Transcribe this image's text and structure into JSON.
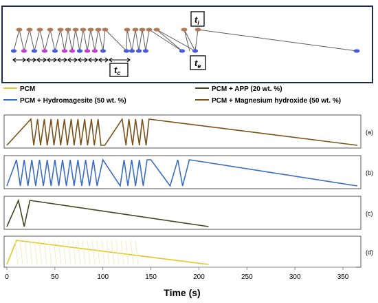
{
  "schematic": {
    "label_ti": "t",
    "label_ti_sub": "i",
    "label_te": "t",
    "label_te_sub": "e",
    "label_tc": "t",
    "label_tc_sub": "c",
    "colors": {
      "frame": "#1f2a44",
      "stem": "#5b5b5b",
      "top_dot": "#b07a5a",
      "bottom_dot": "#4a5bd6",
      "bottom_dot_alt": "#c040c8"
    }
  },
  "legend": [
    {
      "label": "PCM",
      "color": "#e3c81f"
    },
    {
      "label": "PCM + Hydromagesite (50 wt. %)",
      "color": "#3a6cc4"
    },
    {
      "label": "PCM + APP (20 wt. %)",
      "color": "#3e4a1e"
    },
    {
      "label": "PCM + Magnesium hydroxide (50 wt. %)",
      "color": "#7a5218"
    }
  ],
  "panels": [
    {
      "tag": "(a)",
      "color": "#7a5218"
    },
    {
      "tag": "(b)",
      "color": "#3a6cc4"
    },
    {
      "tag": "(c)",
      "color": "#3e4a1e"
    },
    {
      "tag": "(d)",
      "color": "#e3c81f"
    }
  ],
  "chart_data": [
    {
      "type": "line",
      "series": [
        {
          "name": "PCM + Magnesium hydroxide (50 wt. %)",
          "x": [
            0,
            25,
            28,
            32,
            35,
            39,
            42,
            46,
            49,
            53,
            56,
            60,
            63,
            67,
            70,
            74,
            77,
            81,
            84,
            88,
            91,
            95,
            98,
            102,
            120,
            124,
            127,
            131,
            134,
            138,
            141,
            145,
            148,
            365
          ],
          "y": [
            0,
            1,
            0,
            1,
            0,
            1,
            0,
            1,
            0,
            1,
            0,
            1,
            0,
            1,
            0,
            1,
            0,
            1,
            0,
            1,
            0,
            1,
            0,
            0,
            1,
            0,
            1,
            0,
            1,
            0,
            1,
            0,
            1,
            0
          ]
        }
      ]
    },
    {
      "type": "line",
      "series": [
        {
          "name": "PCM + Hydromagesite (50 wt. %)",
          "x": [
            0,
            10,
            14,
            18,
            22,
            26,
            30,
            34,
            38,
            42,
            46,
            50,
            54,
            58,
            62,
            66,
            70,
            74,
            78,
            82,
            86,
            90,
            94,
            100,
            118,
            122,
            126,
            130,
            134,
            138,
            142,
            146,
            150,
            170,
            178,
            183,
            190,
            365
          ],
          "y": [
            0,
            1,
            0,
            1,
            0,
            1,
            0,
            1,
            0,
            1,
            0,
            1,
            0,
            1,
            0,
            1,
            0,
            1,
            0,
            1,
            0,
            1,
            0,
            1,
            0,
            1,
            0,
            1,
            0,
            1,
            0,
            1,
            1,
            0,
            1,
            0,
            1,
            0
          ]
        }
      ]
    },
    {
      "type": "line",
      "series": [
        {
          "name": "PCM + APP (20 wt. %)",
          "x": [
            0,
            12,
            18,
            24,
            210
          ],
          "y": [
            0,
            1,
            0,
            1,
            0
          ]
        }
      ]
    },
    {
      "type": "line",
      "series": [
        {
          "name": "PCM",
          "x": [
            0,
            10,
            210
          ],
          "y": [
            0,
            1,
            0
          ]
        }
      ]
    }
  ],
  "axis": {
    "ticks": [
      "0",
      "50",
      "100",
      "150",
      "200",
      "250",
      "300",
      "350"
    ],
    "tick_values": [
      0,
      50,
      100,
      150,
      200,
      250,
      300,
      350
    ],
    "xlim": [
      0,
      365
    ],
    "xlabel": "Time (s)"
  }
}
